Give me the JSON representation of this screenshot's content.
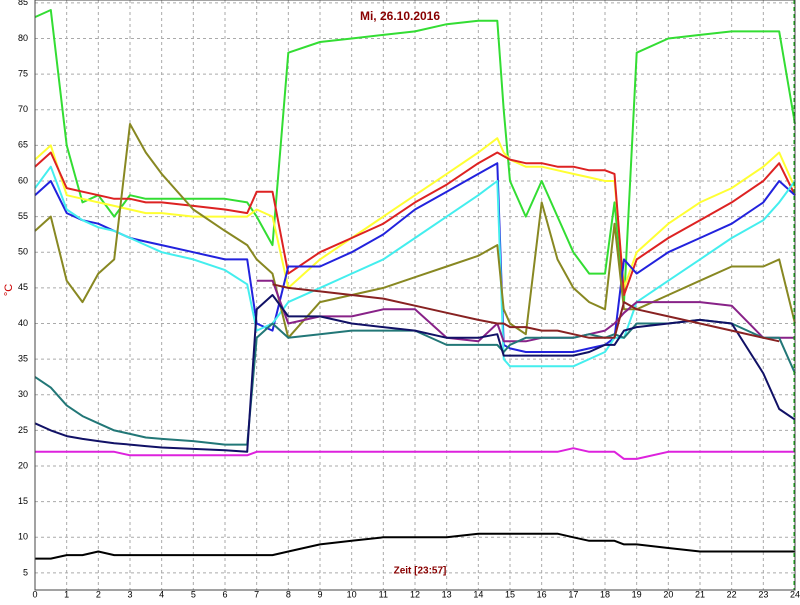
{
  "chart_data": {
    "type": "line",
    "title": "Mi, 26.10.2016",
    "y_label": "°C",
    "annotation": "Zeit [23:57]",
    "grid": true,
    "xlim": [
      0,
      24
    ],
    "xticks": [
      0,
      1,
      2,
      3,
      4,
      5,
      6,
      7,
      8,
      9,
      10,
      11,
      12,
      13,
      14,
      15,
      16,
      17,
      18,
      19,
      20,
      21,
      22,
      23,
      24
    ],
    "ylim": [
      2.6,
      85.4
    ],
    "yticks": [
      5,
      10,
      15,
      20,
      25,
      30,
      35,
      40,
      45,
      50,
      55,
      60,
      65,
      70,
      75,
      80,
      85
    ],
    "x": [
      0,
      0.5,
      1,
      1.5,
      2,
      2.5,
      3,
      3.5,
      4,
      5,
      6,
      6.7,
      7,
      7.5,
      8,
      9,
      10,
      11,
      12,
      13,
      14,
      14.6,
      14.8,
      15,
      15.5,
      16,
      16.5,
      17,
      17.5,
      18,
      18.3,
      18.6,
      19,
      20,
      21,
      22,
      23,
      23.5,
      24
    ],
    "series": [
      {
        "color": "#33dd33",
        "values": [
          83,
          84,
          65,
          57,
          58,
          55,
          58,
          57.5,
          57.5,
          57.5,
          57.5,
          57,
          55,
          51,
          78,
          79.5,
          80,
          80.5,
          81,
          82,
          82.5,
          82.5,
          70,
          60,
          55,
          60,
          55,
          50,
          47,
          47,
          57,
          43,
          78,
          80,
          80.5,
          81,
          81,
          81,
          68
        ]
      },
      {
        "color": "#ffff33",
        "values": [
          63,
          65,
          58,
          57.5,
          57,
          56.5,
          56,
          55.5,
          55.5,
          55,
          55,
          55,
          56,
          55,
          45,
          49,
          52,
          55,
          58,
          61,
          64,
          66,
          64,
          63,
          62,
          62,
          61.5,
          61,
          60.5,
          60,
          60,
          45,
          50,
          54,
          57,
          59,
          62,
          64,
          59
        ]
      },
      {
        "color": "#dd2222",
        "values": [
          62,
          64,
          59,
          58.5,
          58,
          57.5,
          57.5,
          57,
          57,
          56.5,
          56,
          55.5,
          58.5,
          58.5,
          47,
          50,
          52,
          54,
          57,
          59.5,
          62.5,
          64,
          63.5,
          63,
          62.5,
          62.5,
          62,
          62,
          61.5,
          61.5,
          61,
          44,
          49,
          52,
          54.5,
          57,
          60,
          62.5,
          58
        ]
      },
      {
        "color": "#2222dd",
        "values": [
          58,
          60,
          55.5,
          54.5,
          54,
          53,
          52,
          51.5,
          51,
          50,
          49,
          49,
          40,
          39,
          48,
          48,
          50,
          52.5,
          56,
          58.5,
          61,
          62.5,
          37,
          36.5,
          36,
          36,
          36,
          36,
          36.5,
          37,
          38,
          49,
          47,
          50,
          52,
          54,
          57,
          60,
          58
        ]
      },
      {
        "color": "#44eeee",
        "values": [
          59,
          62,
          56,
          54.5,
          53.5,
          53,
          52,
          51,
          50,
          49,
          47.5,
          45.5,
          39,
          40,
          43,
          45,
          47,
          49,
          52,
          55,
          58,
          60,
          35,
          34,
          34,
          34,
          34,
          34,
          35,
          36,
          38,
          38,
          43,
          46,
          49,
          52,
          54.5,
          57,
          60
        ]
      },
      {
        "color": "#888822",
        "values": [
          53,
          55,
          46,
          43,
          47,
          49,
          68,
          64,
          61,
          56,
          53,
          51,
          49,
          47,
          38,
          43,
          44,
          45,
          46.5,
          48,
          49.5,
          51,
          42,
          40,
          38.5,
          57,
          49,
          45,
          43,
          42,
          54,
          42,
          42,
          44,
          46,
          48,
          48,
          49,
          40
        ]
      },
      {
        "color": "#882288",
        "values": [
          null,
          null,
          null,
          null,
          null,
          null,
          null,
          null,
          null,
          null,
          null,
          null,
          46,
          46,
          40,
          41,
          41,
          42,
          42,
          38,
          37.5,
          40,
          37.5,
          37.5,
          37.5,
          38,
          38,
          38,
          38.5,
          39,
          40,
          41.5,
          43,
          43,
          43,
          42.5,
          38,
          38,
          38
        ]
      },
      {
        "color": "#227777",
        "values": [
          32.5,
          31,
          28.5,
          27,
          26,
          25,
          24.5,
          24,
          23.8,
          23.5,
          23,
          23,
          38,
          40,
          38,
          38.5,
          39,
          39,
          39,
          37,
          37,
          37,
          36,
          37,
          38,
          38,
          38,
          38,
          38.5,
          38,
          38.5,
          38,
          40,
          40,
          40.5,
          40,
          38,
          38,
          33
        ]
      },
      {
        "color": "#111166",
        "values": [
          26,
          25,
          24.2,
          23.8,
          23.5,
          23.2,
          23,
          22.8,
          22.6,
          22.4,
          22.2,
          22,
          42,
          44,
          41,
          41,
          40,
          39.5,
          39,
          38,
          38,
          38.5,
          35.5,
          35.5,
          35.5,
          35.5,
          35.5,
          35.5,
          36,
          37,
          37,
          39,
          39.5,
          40,
          40.5,
          40,
          33,
          28,
          26.5
        ]
      },
      {
        "color": "#882222",
        "values": [
          null,
          null,
          null,
          null,
          null,
          null,
          null,
          null,
          null,
          null,
          null,
          null,
          null,
          45.5,
          45,
          44.5,
          44,
          43.5,
          42.5,
          41.5,
          40.5,
          40,
          40,
          39.5,
          39.5,
          39,
          39,
          38.5,
          38,
          38,
          38,
          43,
          42,
          41,
          40,
          39,
          38,
          37.5,
          null
        ]
      },
      {
        "color": "#dd22dd",
        "values": [
          22,
          22,
          22,
          22,
          22,
          22,
          21.5,
          21.5,
          21.5,
          21.5,
          21.5,
          21.5,
          22,
          22,
          22,
          22,
          22,
          22,
          22,
          22,
          22,
          22,
          22,
          22,
          22,
          22,
          22,
          22.5,
          22,
          22,
          22,
          21,
          21,
          22,
          22,
          22,
          22,
          22,
          22
        ]
      },
      {
        "color": "#000000",
        "values": [
          7,
          7,
          7.5,
          7.5,
          8,
          7.5,
          7.5,
          7.5,
          7.5,
          7.5,
          7.5,
          7.5,
          7.5,
          7.5,
          8,
          9,
          9.5,
          10,
          10,
          10,
          10.5,
          10.5,
          10.5,
          10.5,
          10.5,
          10.5,
          10.5,
          10,
          9.5,
          9.5,
          9.5,
          9,
          9,
          8.5,
          8,
          8,
          8,
          8,
          8
        ]
      }
    ]
  }
}
